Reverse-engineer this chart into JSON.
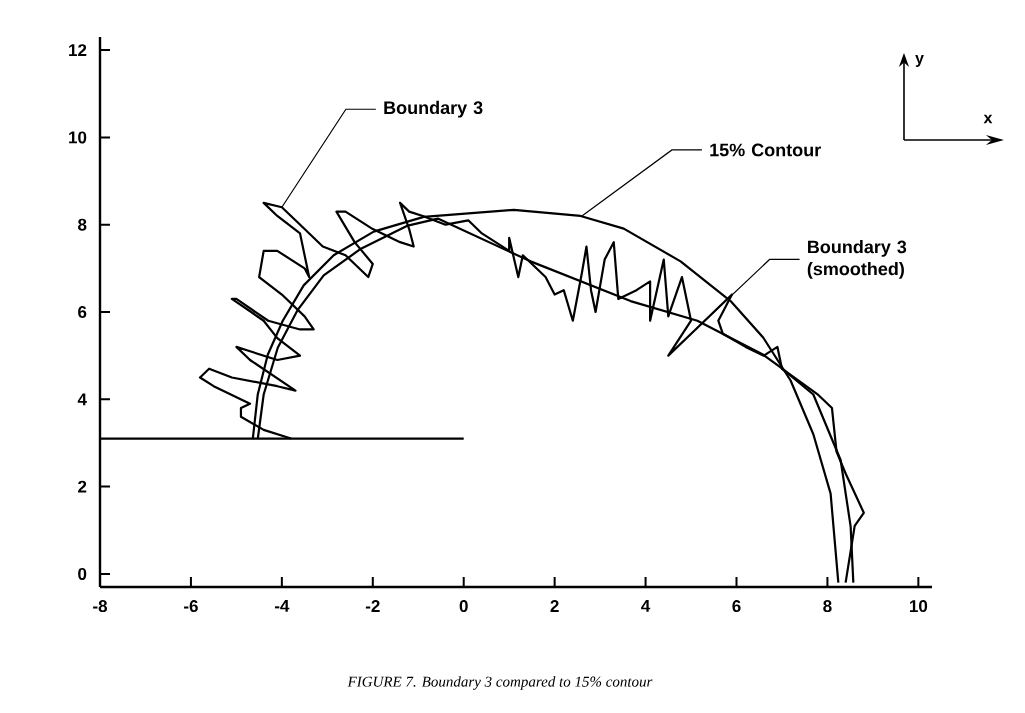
{
  "chart_data": {
    "type": "line",
    "xlabel": "x",
    "ylabel": "y",
    "xlim": [
      -8,
      10.3
    ],
    "ylim": [
      -0.3,
      12.3
    ],
    "xticks": [
      -8,
      -6,
      -4,
      -2,
      0,
      2,
      4,
      6,
      8,
      10
    ],
    "yticks": [
      0,
      2,
      4,
      6,
      8,
      10,
      12
    ],
    "series": [
      {
        "color": "#000000",
        "x": [
          -8,
          0
        ],
        "values": [
          3.1,
          3.1
        ]
      },
      {
        "color": "#000000",
        "x": [
          -4.64,
          -4.53,
          -4.31,
          -3.98,
          -3.52,
          -2.86,
          -1.98,
          -0.88,
          1.1,
          2.57,
          3.52,
          4.77,
          5.87,
          6.59,
          7.19,
          7.69,
          8.07,
          8.24
        ],
        "values": [
          3.09,
          4.11,
          5.02,
          5.8,
          6.61,
          7.3,
          7.84,
          8.18,
          8.34,
          8.2,
          7.91,
          7.16,
          6.25,
          5.41,
          4.43,
          3.2,
          1.84,
          -0.2
        ]
      },
      {
        "color": "#000000",
        "x": [
          -4.53,
          -4.4,
          -4.09,
          -3.65,
          -3.08,
          -2.26,
          -1.23,
          -0.57,
          1.47,
          3.67,
          5.14,
          6.59,
          6.97,
          7.69,
          8.29,
          8.51,
          8.57
        ],
        "values": [
          3.09,
          4.11,
          5.18,
          6.05,
          6.84,
          7.45,
          7.98,
          8.14,
          7.16,
          6.25,
          5.8,
          5.02,
          4.73,
          4.11,
          2.61,
          1.09,
          -0.2
        ]
      },
      {
        "color": "#000000",
        "x": [
          -3.8,
          -4.4,
          -4.9,
          -4.9,
          -4.7,
          -5.5,
          -5.8,
          -5.6,
          -5.1,
          -4.1,
          -3.7,
          -4.7,
          -5.0,
          -4.7,
          -4.1,
          -3.6,
          -4.1,
          -4.4,
          -5.1,
          -5.0,
          -4.3,
          -3.6,
          -3.3,
          -3.5,
          -4.0,
          -4.5,
          -4.4,
          -4.1,
          -3.5,
          -3.4,
          -3.6,
          -4.1,
          -4.4,
          -4.0,
          -3.5,
          -3.1,
          -2.6,
          -2.1,
          -2.0,
          -2.4,
          -2.8,
          -2.6,
          -2.0,
          -1.4,
          -1.1,
          -1.2,
          -1.4,
          -1.2,
          -0.9,
          -0.4,
          0.1,
          0.4,
          1.0,
          1.0,
          1.2,
          1.3,
          1.8,
          2.0,
          2.2,
          2.4,
          2.6,
          2.7,
          2.8,
          2.9,
          3.1,
          3.3,
          3.4,
          3.8,
          4.1,
          4.1,
          4.4,
          4.5,
          4.8,
          5.0,
          4.5,
          5.1,
          5.5,
          5.9,
          5.6,
          5.7,
          6.2,
          6.6,
          6.9,
          7.0,
          7.8,
          8.1,
          8.2,
          8.4,
          8.8,
          8.6,
          8.4
        ],
        "values": [
          3.1,
          3.3,
          3.6,
          3.8,
          3.9,
          4.3,
          4.5,
          4.7,
          4.5,
          4.3,
          4.2,
          4.9,
          5.2,
          5.1,
          4.9,
          5.0,
          5.4,
          5.8,
          6.3,
          6.3,
          5.8,
          5.6,
          5.6,
          5.9,
          6.4,
          6.8,
          7.4,
          7.4,
          7.0,
          6.8,
          7.8,
          8.2,
          8.5,
          8.4,
          7.9,
          7.5,
          7.3,
          6.8,
          7.1,
          7.6,
          8.3,
          8.3,
          7.9,
          7.6,
          7.5,
          7.9,
          8.5,
          8.3,
          8.2,
          8.0,
          8.1,
          7.8,
          7.4,
          7.7,
          6.8,
          7.3,
          6.8,
          6.4,
          6.5,
          5.8,
          6.9,
          7.5,
          6.5,
          6.0,
          7.2,
          7.6,
          6.3,
          6.5,
          6.7,
          5.8,
          7.2,
          5.9,
          6.8,
          5.8,
          5.0,
          5.6,
          6.0,
          6.4,
          5.8,
          5.5,
          5.2,
          5.0,
          5.2,
          4.7,
          4.1,
          3.8,
          2.8,
          2.3,
          1.4,
          1.1,
          -0.2
        ]
      }
    ],
    "annotations": [
      {
        "text": "Boundary 3",
        "x": -4.0,
        "y": 8.4
      },
      {
        "text": "15% Contour",
        "x": 2.6,
        "y": 8.2
      },
      {
        "text": "Boundary 3 (smoothed)",
        "x": 5.1,
        "y": 5.6
      },
      "*FIGURE 7.  Boundary 3 compared to 15% contour*"
    ]
  }
}
